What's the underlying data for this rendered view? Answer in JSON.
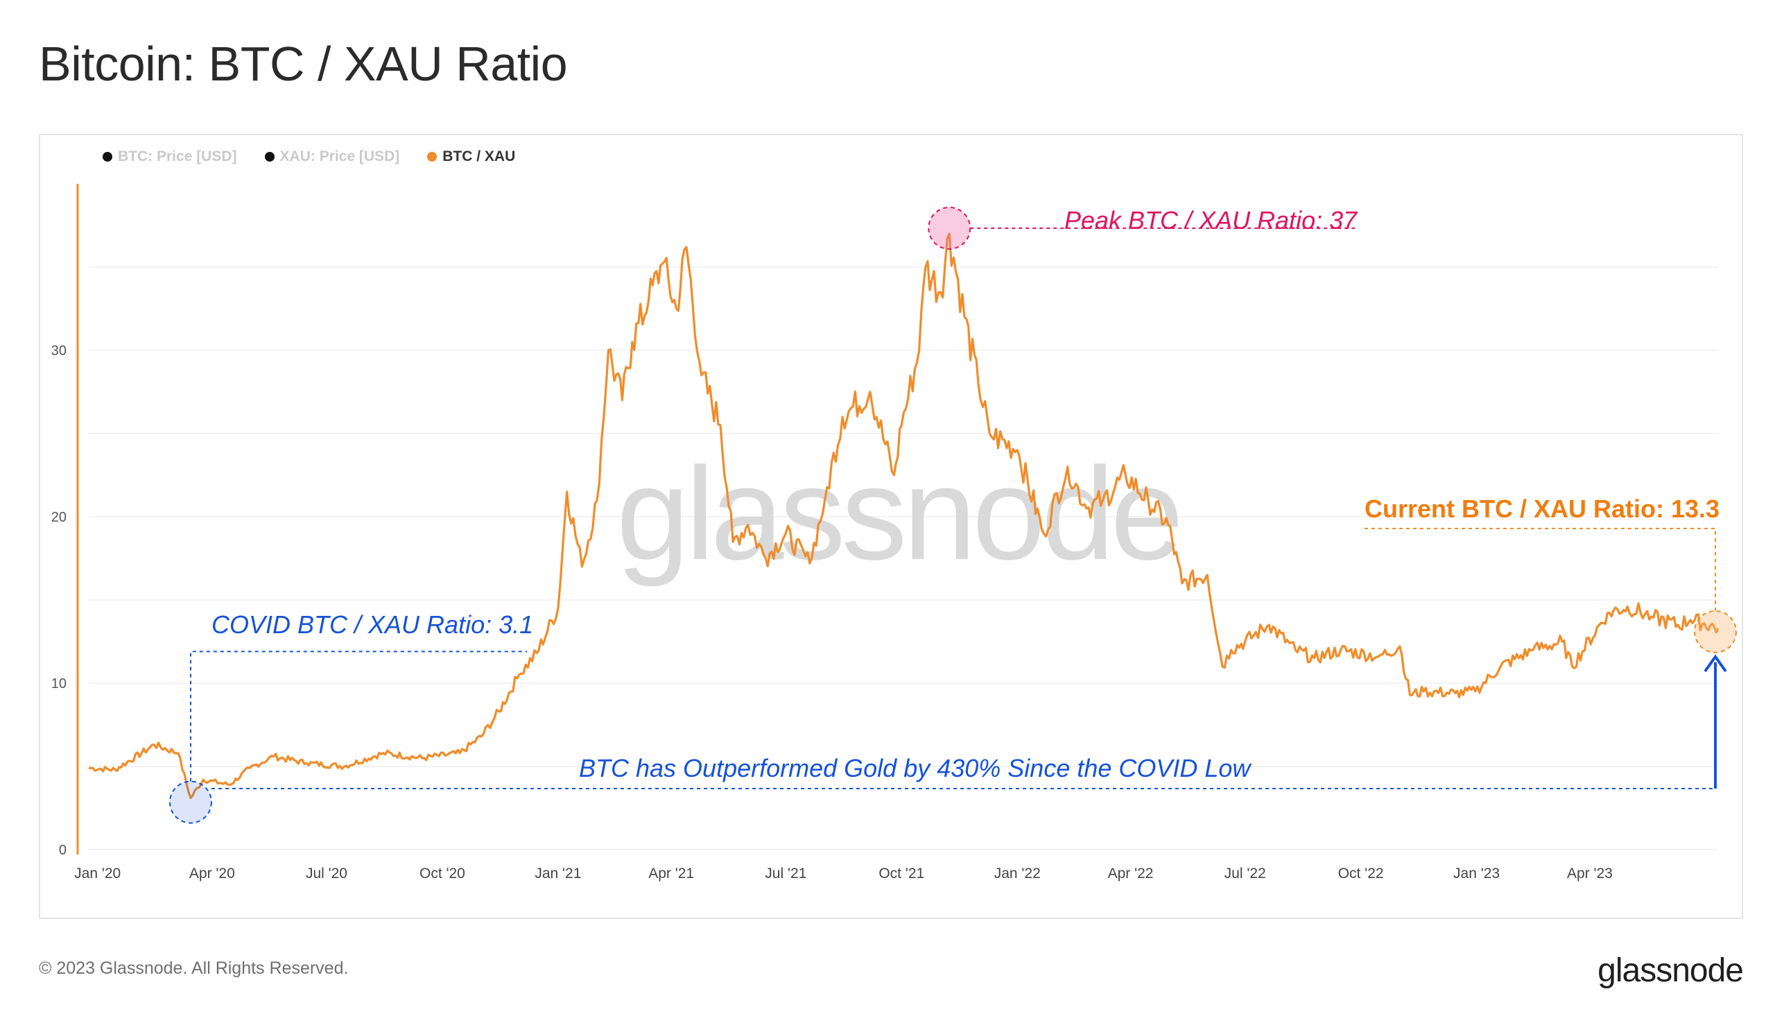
{
  "title": "Bitcoin: BTC / XAU Ratio",
  "legend": [
    {
      "label": "BTC: Price [USD]",
      "color": "#111111",
      "active": false
    },
    {
      "label": "XAU: Price [USD]",
      "color": "#111111",
      "active": false
    },
    {
      "label": "BTC / XAU",
      "color": "#f08c2a",
      "active": true
    }
  ],
  "watermark": "glassnode",
  "footer": "© 2023 Glassnode. All Rights Reserved.",
  "brand": "glassnode",
  "annotations": {
    "covid": "COVID BTC / XAU Ratio: 3.1",
    "peak": "Peak BTC / XAU Ratio: 37",
    "current": "Current BTC / XAU Ratio: 13.3",
    "outperformance": "BTC has Outperformed Gold by 430% Since the COVID Low"
  },
  "colors": {
    "series": "#f08c2a",
    "covid": "#1552d8",
    "peak": "#e0135f",
    "current": "#f07d0f"
  },
  "chart_data": {
    "type": "line",
    "title": "Bitcoin: BTC / XAU Ratio",
    "xlabel": "",
    "ylabel": "",
    "ylim": [
      0,
      40
    ],
    "yticks": [
      0,
      10,
      20,
      30
    ],
    "xticks": [
      "Jan '20",
      "Apr '20",
      "Jul '20",
      "Oct '20",
      "Jan '21",
      "Apr '21",
      "Jul '21",
      "Oct '21",
      "Jan '22",
      "Apr '22",
      "Jul '22",
      "Oct '22",
      "Jan '23",
      "Apr '23"
    ],
    "grid": true,
    "legend_position": "top-left",
    "series": [
      {
        "name": "BTC / XAU",
        "x": [
          "2019-12-25",
          "2020-01-15",
          "2020-02-05",
          "2020-02-15",
          "2020-03-05",
          "2020-03-15",
          "2020-03-25",
          "2020-04-15",
          "2020-05-01",
          "2020-05-20",
          "2020-06-15",
          "2020-07-15",
          "2020-08-15",
          "2020-09-15",
          "2020-10-15",
          "2020-11-01",
          "2020-11-15",
          "2020-12-01",
          "2020-12-15",
          "2021-01-01",
          "2021-01-08",
          "2021-01-20",
          "2021-02-01",
          "2021-02-10",
          "2021-02-21",
          "2021-03-01",
          "2021-03-14",
          "2021-03-25",
          "2021-04-05",
          "2021-04-13",
          "2021-04-25",
          "2021-05-10",
          "2021-05-20",
          "2021-06-01",
          "2021-06-15",
          "2021-07-01",
          "2021-07-20",
          "2021-08-01",
          "2021-08-15",
          "2021-09-06",
          "2021-09-25",
          "2021-10-01",
          "2021-10-15",
          "2021-10-20",
          "2021-11-01",
          "2021-11-08",
          "2021-11-20",
          "2021-12-01",
          "2021-12-10",
          "2022-01-01",
          "2022-01-22",
          "2022-02-10",
          "2022-02-25",
          "2022-03-10",
          "2022-03-28",
          "2022-04-15",
          "2022-05-01",
          "2022-05-12",
          "2022-06-01",
          "2022-06-13",
          "2022-06-20",
          "2022-07-01",
          "2022-07-20",
          "2022-08-10",
          "2022-08-25",
          "2022-09-15",
          "2022-10-15",
          "2022-11-01",
          "2022-11-09",
          "2022-11-20",
          "2022-12-15",
          "2022-12-31",
          "2023-01-20",
          "2023-02-15",
          "2023-03-10",
          "2023-03-18",
          "2023-04-15",
          "2023-05-01",
          "2023-05-20",
          "2023-06-10",
          "2023-06-20",
          "2023-07-01",
          "2023-07-12"
        ],
        "y": [
          4.9,
          4.8,
          5.8,
          6.3,
          5.8,
          3.1,
          4.2,
          3.9,
          4.9,
          5.6,
          5.2,
          5.0,
          5.8,
          5.5,
          5.8,
          6.8,
          8.3,
          10.5,
          11.8,
          14.5,
          21.5,
          17.0,
          21.0,
          30.0,
          27.0,
          30.5,
          33.0,
          35.2,
          32.5,
          36.2,
          28.5,
          25.5,
          18.5,
          19.5,
          17.5,
          19.0,
          17.2,
          21.0,
          26.0,
          27.5,
          22.5,
          25.5,
          30.0,
          35.0,
          33.5,
          37.0,
          32.0,
          28.0,
          25.0,
          24.0,
          19.0,
          23.0,
          20.5,
          21.0,
          22.5,
          21.0,
          19.5,
          16.0,
          16.5,
          11.0,
          12.0,
          12.5,
          13.5,
          12.0,
          11.5,
          12.0,
          11.6,
          12.2,
          9.3,
          9.5,
          9.4,
          9.5,
          11.0,
          12.0,
          12.5,
          11.0,
          14.2,
          14.6,
          14.0,
          13.5,
          13.8,
          13.6,
          13.3
        ]
      }
    ],
    "annotations": [
      {
        "label": "COVID BTC / XAU Ratio: 3.1",
        "x": "2020-03-15",
        "y": 3.1
      },
      {
        "label": "Peak BTC / XAU Ratio: 37",
        "x": "2021-11-08",
        "y": 37
      },
      {
        "label": "Current BTC / XAU Ratio: 13.3",
        "x": "2023-07-12",
        "y": 13.3
      }
    ]
  }
}
